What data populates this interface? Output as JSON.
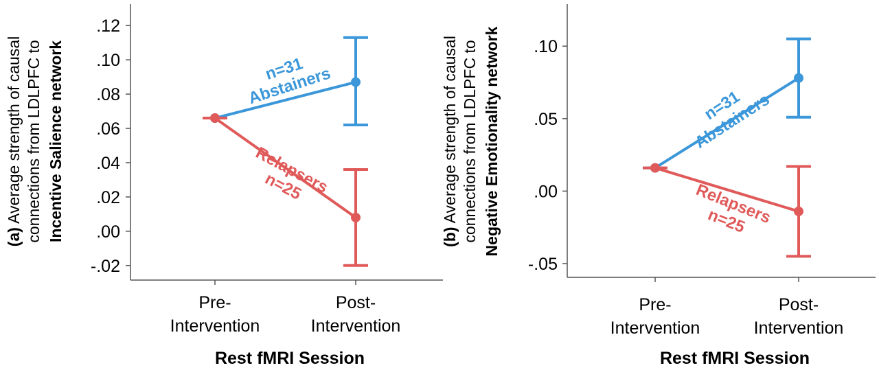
{
  "chart_data": [
    {
      "panel": "(a)",
      "type": "line",
      "ylabel_lines": [
        "Average strength of causal",
        "connections from LDLPFC to"
      ],
      "ylabel_bold": "Incentive Salience network",
      "xlabel": "Rest fMRI Session",
      "categories": [
        [
          "Pre-",
          "Intervention"
        ],
        [
          "Post-",
          "Intervention"
        ]
      ],
      "yticks": [
        -0.02,
        0.0,
        0.02,
        0.04,
        0.06,
        0.08,
        0.1,
        0.12
      ],
      "ytick_labels": [
        "-.02",
        ".00",
        ".02",
        ".04",
        ".06",
        ".08",
        ".10",
        ".12"
      ],
      "ylim": [
        -0.0285,
        0.1325
      ],
      "series": [
        {
          "group": "Abstainers",
          "n_label": "n=31",
          "color": "#3b97d9",
          "values": [
            0.066,
            0.087
          ],
          "err_low": [
            null,
            0.062
          ],
          "err_high": [
            null,
            0.113
          ]
        },
        {
          "group": "Relapsers",
          "n_label": "n=25",
          "color": "#e05a5a",
          "values": [
            0.066,
            0.008
          ],
          "err_low": [
            null,
            -0.02
          ],
          "err_high": [
            null,
            0.036
          ]
        }
      ]
    },
    {
      "panel": "(b)",
      "type": "line",
      "ylabel_lines": [
        "Average strength of causal",
        "connections from LDLPFC to"
      ],
      "ylabel_bold": "Negative Emotionality network",
      "xlabel": "Rest fMRI Session",
      "categories": [
        [
          "Pre-",
          "Intervention"
        ],
        [
          "Post-",
          "Intervention"
        ]
      ],
      "yticks": [
        -0.05,
        0.0,
        0.05,
        0.1
      ],
      "ytick_labels": [
        "-.05",
        ".00",
        ".05",
        ".10"
      ],
      "ylim": [
        -0.0595,
        0.129
      ],
      "series": [
        {
          "group": "Abstainers",
          "n_label": "n=31",
          "color": "#3b97d9",
          "values": [
            0.016,
            0.078
          ],
          "err_low": [
            null,
            0.051
          ],
          "err_high": [
            null,
            0.105
          ]
        },
        {
          "group": "Relapsers",
          "n_label": "n=25",
          "color": "#e05a5a",
          "values": [
            0.016,
            -0.014
          ],
          "err_low": [
            null,
            -0.045
          ],
          "err_high": [
            null,
            0.017
          ]
        }
      ]
    }
  ]
}
